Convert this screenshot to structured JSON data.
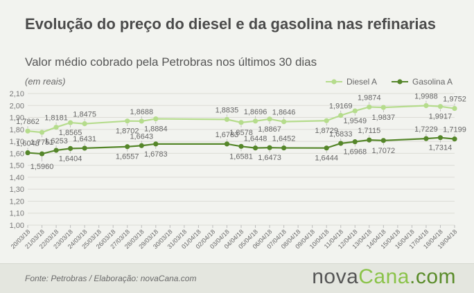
{
  "header": {
    "title": "Evolução do preço do diesel e da gasolina nas refinarias",
    "subtitle": "Valor médio cobrado pela Petrobras nos últimos 30 dias",
    "unit": "(em reais)"
  },
  "footer": {
    "source": "Fonte:  Petrobras  / Elaboração:  novaCana.com",
    "brand": {
      "part1": "nova",
      "part2": "Cana",
      "part3": ".com"
    }
  },
  "colors": {
    "diesel": "#b5dc8c",
    "gasolina": "#55862a",
    "grid": "#dcdcd6",
    "text": "#666666"
  },
  "chart_data": {
    "type": "line",
    "ylim": [
      1.0,
      2.1
    ],
    "yticks": [
      "2,10",
      "2,00",
      "1,90",
      "1,80",
      "1,70",
      "1,60",
      "1,50",
      "1,40",
      "1,30",
      "1,20",
      "1,10",
      "1,00"
    ],
    "ytick_values": [
      2.1,
      2.0,
      1.9,
      1.8,
      1.7,
      1.6,
      1.5,
      1.4,
      1.3,
      1.2,
      1.1,
      1.0
    ],
    "legend_position": "top-right",
    "categories": [
      "20/03/18",
      "21/03/18",
      "22/03/18",
      "23/03/18",
      "24/03/18",
      "25/03/18",
      "26/03/18",
      "27/03/18",
      "28/03/18",
      "29/03/18",
      "30/03/18",
      "31/03/18",
      "01/04/18",
      "02/04/18",
      "03/04/18",
      "04/04/18",
      "05/04/18",
      "06/04/18",
      "07/04/18",
      "08/04/18",
      "09/04/18",
      "10/04/18",
      "11/04/18",
      "12/04/18",
      "13/04/18",
      "14/04/18",
      "15/04/18",
      "16/04/18",
      "17/04/18",
      "18/04/18",
      "19/04/18"
    ],
    "series": [
      {
        "name": "Diesel A",
        "color": "#b5dc8c",
        "values": [
          1.7862,
          1.7751,
          1.8181,
          1.8565,
          1.8475,
          null,
          null,
          1.8702,
          1.8688,
          1.8884,
          null,
          null,
          null,
          null,
          1.8835,
          1.8578,
          1.8696,
          1.8867,
          1.8646,
          null,
          null,
          1.8729,
          1.9169,
          1.9549,
          1.9874,
          1.9837,
          null,
          null,
          1.9988,
          1.9917,
          1.9752
        ],
        "labels": [
          "1,7862",
          "1,7751",
          "1,8181",
          "1,8565",
          "1,8475",
          null,
          null,
          "1,8702",
          "1,8688",
          "1,8884",
          null,
          null,
          null,
          null,
          "1,8835",
          "1,8578",
          "1,8696",
          "1,8867",
          "1,8646",
          null,
          null,
          "1,8729",
          "1,9169",
          "1,9549",
          "1,9874",
          "1,9837",
          null,
          null,
          "1,9988",
          "1,9917",
          "1,9752"
        ]
      },
      {
        "name": "Gasolina A",
        "color": "#55862a",
        "values": [
          1.6048,
          1.596,
          1.6253,
          1.6404,
          1.6431,
          null,
          null,
          1.6557,
          1.6643,
          1.6783,
          null,
          null,
          null,
          null,
          1.6783,
          1.6581,
          1.6448,
          1.6473,
          1.6452,
          null,
          null,
          1.6444,
          1.6833,
          1.6968,
          1.7115,
          1.7072,
          null,
          null,
          1.7229,
          1.7314,
          1.7199
        ],
        "labels": [
          "1,6048",
          "1,5960",
          "1,6253",
          "1,6404",
          "1,6431",
          null,
          null,
          "1,6557",
          "1,6643",
          "1,6783",
          null,
          null,
          null,
          null,
          "1,6783",
          "1,6581",
          "1,6448",
          "1,6473",
          "1,6452",
          null,
          null,
          "1,6444",
          "1,6833",
          "1,6968",
          "1,7115",
          "1,7072",
          null,
          null,
          "1,7229",
          "1,7314",
          "1,7199"
        ]
      }
    ]
  }
}
